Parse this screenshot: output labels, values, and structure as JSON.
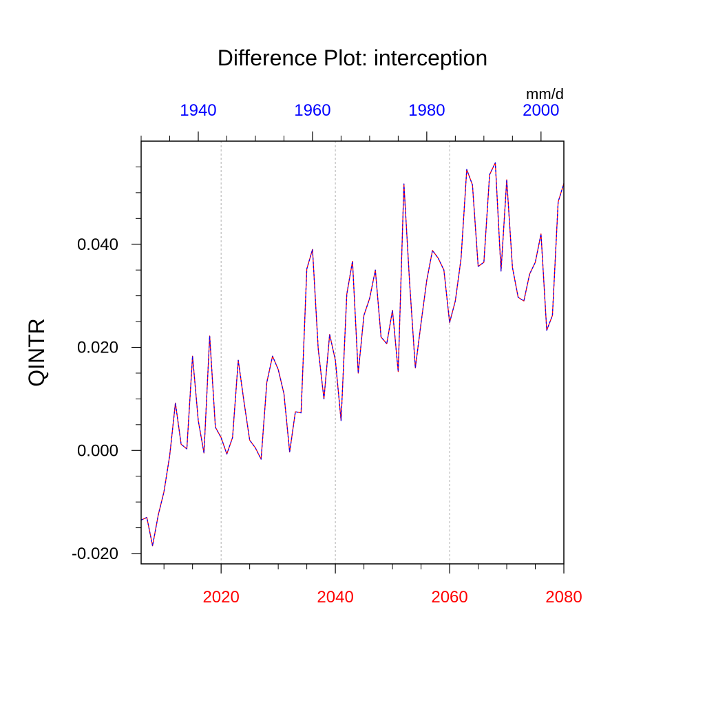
{
  "chart_data": {
    "type": "line",
    "title": "Difference Plot: interception",
    "ylabel": "QINTR",
    "units": "mm/d",
    "ylim": [
      -0.022,
      0.06
    ],
    "yticks": [
      -0.02,
      0.0,
      0.02,
      0.04
    ],
    "ytick_labels": [
      "-0.020",
      "0.000",
      "0.020",
      "0.040"
    ],
    "grid": "vertical dashed at bottom-axis major ticks",
    "x_bottom": {
      "range": [
        2006,
        2080
      ],
      "ticks": [
        2020,
        2040,
        2060,
        2080
      ],
      "tick_labels": [
        "2020",
        "2040",
        "2060",
        "2080"
      ],
      "color": "#ff0000"
    },
    "x_top": {
      "range": [
        1930,
        2004
      ],
      "ticks": [
        1940,
        1960,
        1980,
        2000
      ],
      "tick_labels": [
        "1940",
        "1960",
        "1980",
        "2000"
      ],
      "color": "#0000ff"
    },
    "series": [
      {
        "color_primary": "#ff0000",
        "color_secondary": "#0000ff",
        "style": "dashed-overlay",
        "x": [
          2006,
          2007,
          2008,
          2009,
          2010,
          2011,
          2012,
          2013,
          2014,
          2015,
          2016,
          2017,
          2018,
          2019,
          2020,
          2021,
          2022,
          2023,
          2024,
          2025,
          2026,
          2027,
          2028,
          2029,
          2030,
          2031,
          2032,
          2033,
          2034,
          2035,
          2036,
          2037,
          2038,
          2039,
          2040,
          2041,
          2042,
          2043,
          2044,
          2045,
          2046,
          2047,
          2048,
          2049,
          2050,
          2051,
          2052,
          2053,
          2054,
          2055,
          2056,
          2057,
          2058,
          2059,
          2060,
          2061,
          2062,
          2063,
          2064,
          2065,
          2066,
          2067,
          2068,
          2069,
          2070,
          2071,
          2072,
          2073,
          2074,
          2075,
          2076,
          2077,
          2078,
          2079,
          2080
        ],
        "values": [
          -0.0135,
          -0.013,
          -0.0185,
          -0.0125,
          -0.008,
          -0.001,
          0.0092,
          0.0012,
          0.0003,
          0.0183,
          0.0058,
          -0.0005,
          0.0222,
          0.0045,
          0.0025,
          -0.0007,
          0.0025,
          0.0175,
          0.0095,
          0.002,
          0.0005,
          -0.0017,
          0.0132,
          0.0183,
          0.0157,
          0.011,
          -0.0003,
          0.0075,
          0.0073,
          0.0352,
          0.039,
          0.0197,
          0.01,
          0.0225,
          0.0175,
          0.0058,
          0.0303,
          0.0367,
          0.015,
          0.0262,
          0.0295,
          0.035,
          0.022,
          0.0207,
          0.0272,
          0.0153,
          0.0517,
          0.0325,
          0.016,
          0.0247,
          0.033,
          0.0388,
          0.0373,
          0.035,
          0.0248,
          0.029,
          0.0372,
          0.0545,
          0.0515,
          0.0357,
          0.0365,
          0.0535,
          0.0558,
          0.0348,
          0.0525,
          0.0355,
          0.0297,
          0.029,
          0.0342,
          0.0365,
          0.042,
          0.0233,
          0.0262,
          0.0482,
          0.0518
        ]
      }
    ]
  }
}
